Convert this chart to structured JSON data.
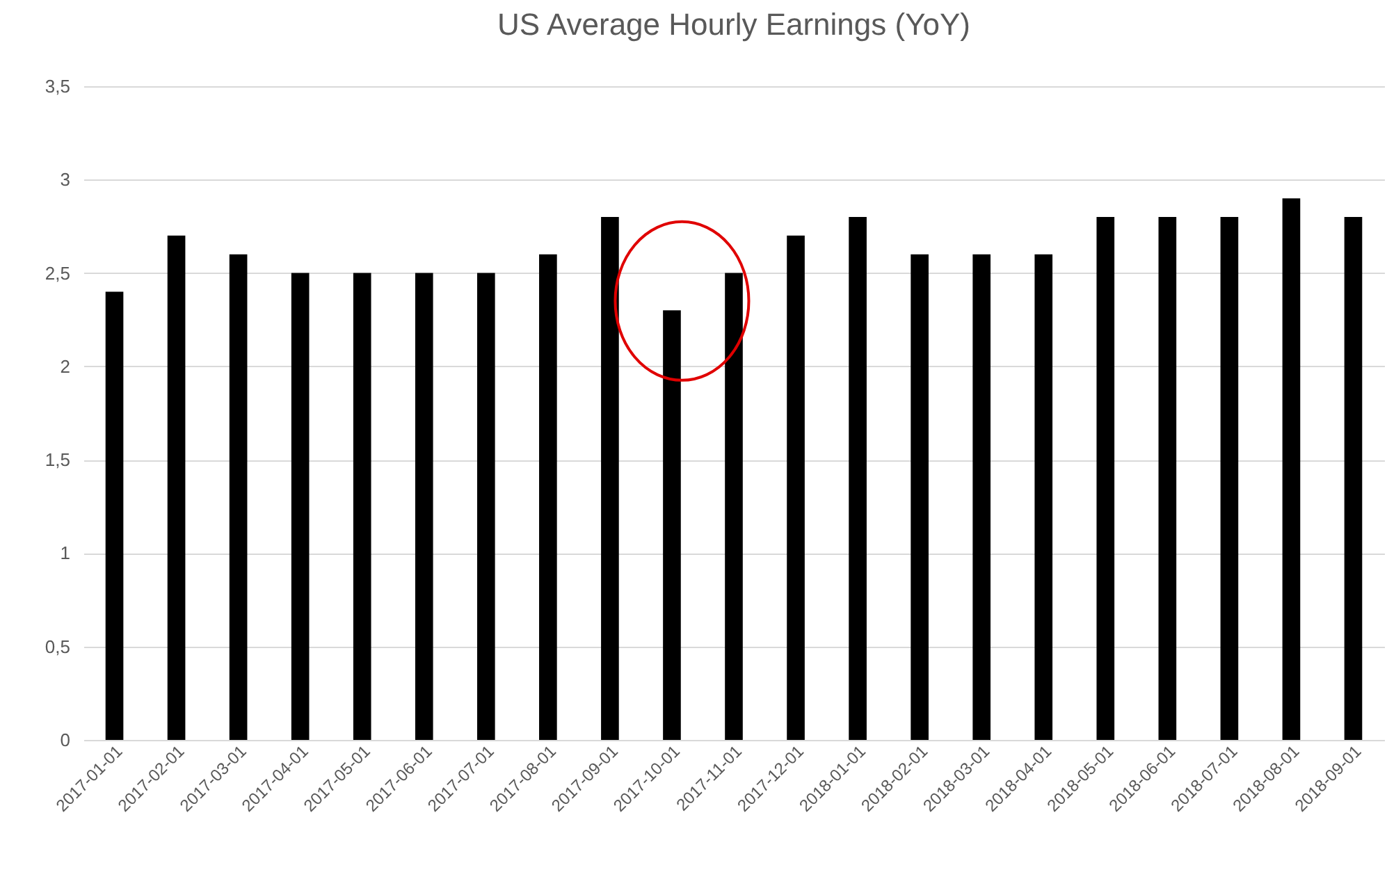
{
  "chart_data": {
    "type": "bar",
    "title": "US Average Hourly Earnings (YoY)",
    "categories": [
      "2017-01-01",
      "2017-02-01",
      "2017-03-01",
      "2017-04-01",
      "2017-05-01",
      "2017-06-01",
      "2017-07-01",
      "2017-08-01",
      "2017-09-01",
      "2017-10-01",
      "2017-11-01",
      "2017-12-01",
      "2018-01-01",
      "2018-02-01",
      "2018-03-01",
      "2018-04-01",
      "2018-05-01",
      "2018-06-01",
      "2018-07-01",
      "2018-08-01",
      "2018-09-01"
    ],
    "values": [
      2.4,
      2.7,
      2.6,
      2.5,
      2.5,
      2.5,
      2.5,
      2.6,
      2.8,
      2.3,
      2.5,
      2.7,
      2.8,
      2.6,
      2.6,
      2.6,
      2.8,
      2.8,
      2.8,
      2.9,
      2.8
    ],
    "color": "#000000",
    "ylim": [
      0,
      3.5
    ],
    "yticks": [
      0,
      {
        "value": 0.5,
        "label": "0,5"
      },
      1,
      {
        "value": 1.5,
        "label": "1,5"
      },
      2,
      {
        "value": 2.5,
        "label": "2,5"
      },
      3,
      {
        "value": 3.5,
        "label": "3,5"
      }
    ],
    "grid": "y"
  }
}
